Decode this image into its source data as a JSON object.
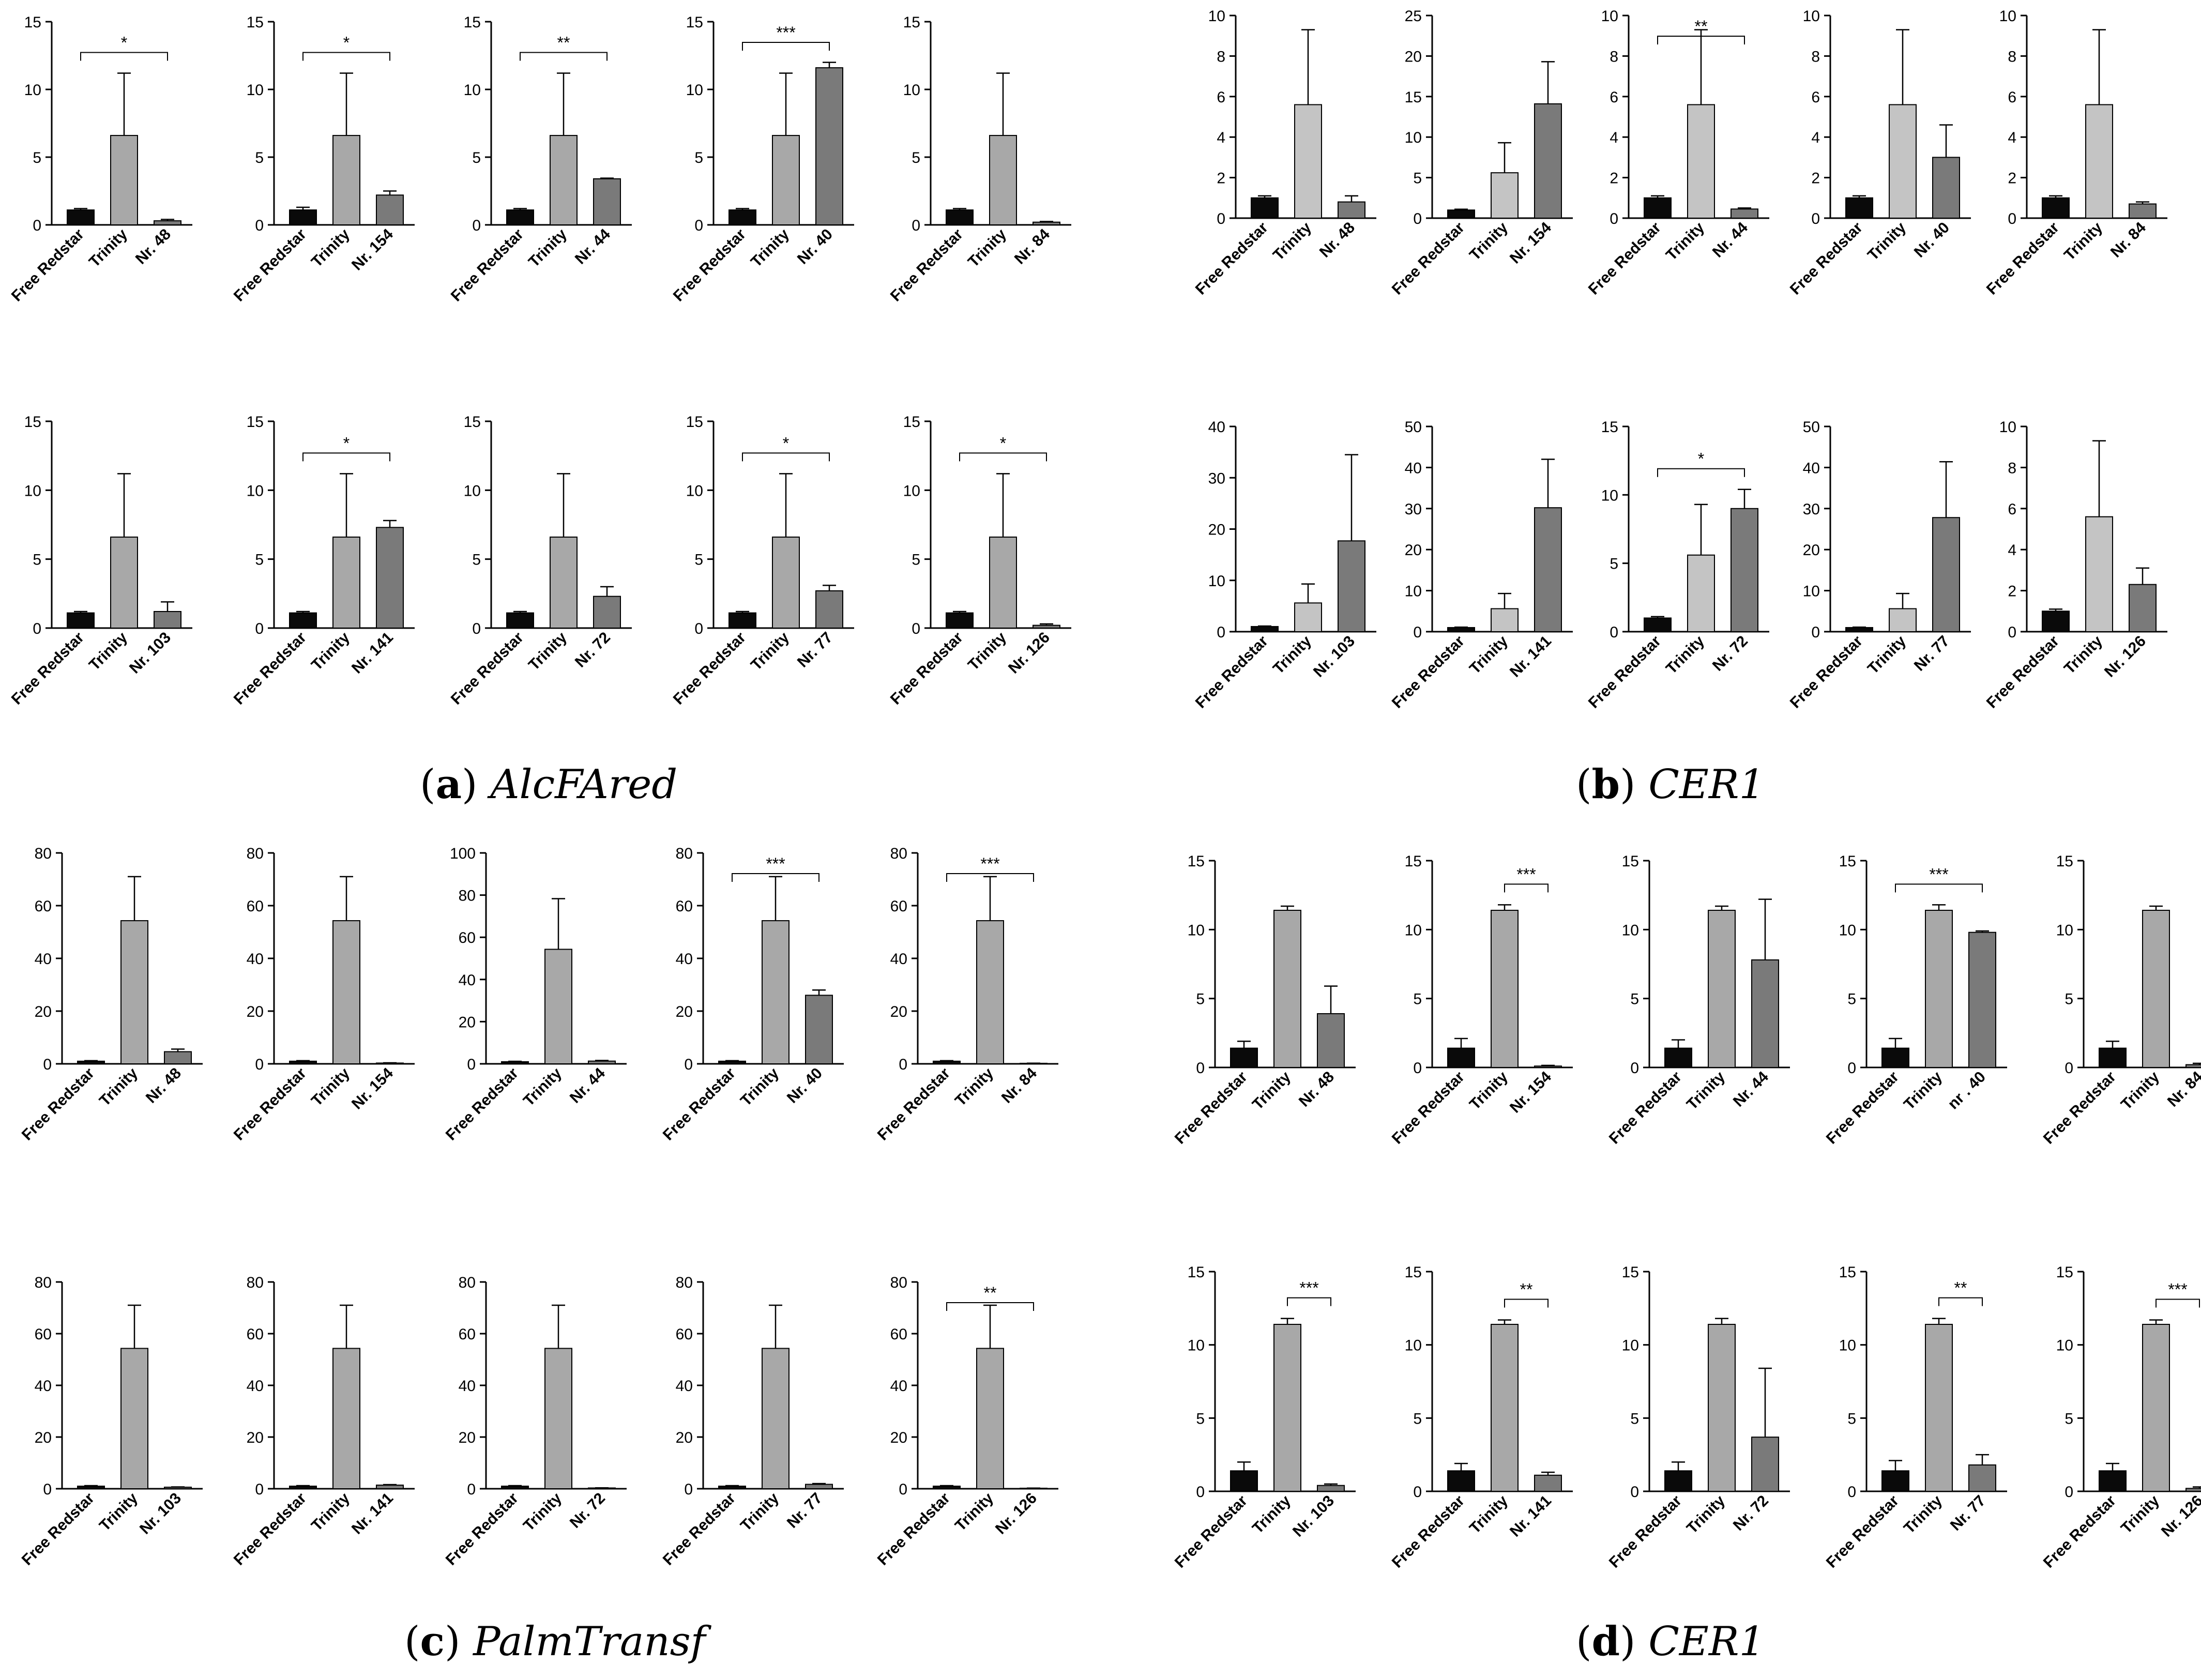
{
  "figure": {
    "captions": [
      {
        "letter": "a",
        "gene": "AlcFAred"
      },
      {
        "letter": "b",
        "gene": "CER1"
      },
      {
        "letter": "c",
        "gene": "PalmTransf"
      },
      {
        "letter": "d",
        "gene": "CER1"
      }
    ]
  },
  "colors": {
    "free_redstar": "#0a0a0a",
    "trinity": "#a8a8a8",
    "trinity_light": "#c4c4c4",
    "line": "#7a7a7a",
    "line_dark": "#3c3c3c",
    "axis": "#000000"
  },
  "chart_data": [
    {
      "panel": "a",
      "type": "bar",
      "categories": [
        "Free Redstar",
        "Trinity",
        "Nr. 48"
      ],
      "values": [
        1.1,
        6.6,
        0.3
      ],
      "errors": [
        0.1,
        4.6,
        0.1
      ],
      "ylim": [
        0,
        15
      ],
      "yticks": [
        0,
        5,
        10,
        15
      ],
      "sig": {
        "from": 0,
        "to": 2,
        "label": "*"
      }
    },
    {
      "panel": "a",
      "type": "bar",
      "categories": [
        "Free Redstar",
        "Trinity",
        "Nr. 154"
      ],
      "values": [
        1.1,
        6.6,
        2.2
      ],
      "errors": [
        0.2,
        4.6,
        0.3
      ],
      "ylim": [
        0,
        15
      ],
      "yticks": [
        0,
        5,
        10,
        15
      ],
      "sig": {
        "from": 0,
        "to": 2,
        "label": "*"
      }
    },
    {
      "panel": "a",
      "type": "bar",
      "categories": [
        "Free Redstar",
        "Trinity",
        "Nr. 44"
      ],
      "values": [
        1.1,
        6.6,
        3.4
      ],
      "errors": [
        0.1,
        4.6,
        0.05
      ],
      "ylim": [
        0,
        15
      ],
      "yticks": [
        0,
        5,
        10,
        15
      ],
      "sig": {
        "from": 0,
        "to": 2,
        "label": "**"
      }
    },
    {
      "panel": "a",
      "type": "bar",
      "categories": [
        "Free Redstar",
        "Trinity",
        "Nr. 40"
      ],
      "values": [
        1.1,
        6.6,
        11.6
      ],
      "errors": [
        0.1,
        4.6,
        0.4
      ],
      "ylim": [
        0,
        15
      ],
      "yticks": [
        0,
        5,
        10,
        15
      ],
      "sig": {
        "from": 0,
        "to": 2,
        "label": "***"
      }
    },
    {
      "panel": "a",
      "type": "bar",
      "categories": [
        "Free Redstar",
        "Trinity",
        "Nr. 84"
      ],
      "values": [
        1.1,
        6.6,
        0.2
      ],
      "errors": [
        0.1,
        4.6,
        0.05
      ],
      "ylim": [
        0,
        15
      ],
      "yticks": [
        0,
        5,
        10,
        15
      ]
    },
    {
      "panel": "a",
      "type": "bar",
      "categories": [
        "Free Redstar",
        "Trinity",
        "Nr. 103"
      ],
      "values": [
        1.1,
        6.6,
        1.2
      ],
      "errors": [
        0.1,
        4.6,
        0.7
      ],
      "ylim": [
        0,
        15
      ],
      "yticks": [
        0,
        5,
        10,
        15
      ]
    },
    {
      "panel": "a",
      "type": "bar",
      "categories": [
        "Free Redstar",
        "Trinity",
        "Nr. 141"
      ],
      "values": [
        1.1,
        6.6,
        7.3
      ],
      "errors": [
        0.1,
        4.6,
        0.5
      ],
      "ylim": [
        0,
        15
      ],
      "yticks": [
        0,
        5,
        10,
        15
      ],
      "sig": {
        "from": 0,
        "to": 2,
        "label": "*"
      }
    },
    {
      "panel": "a",
      "type": "bar",
      "categories": [
        "Free Redstar",
        "Trinity",
        "Nr. 72"
      ],
      "values": [
        1.1,
        6.6,
        2.3
      ],
      "errors": [
        0.1,
        4.6,
        0.7
      ],
      "ylim": [
        0,
        15
      ],
      "yticks": [
        0,
        5,
        10,
        15
      ]
    },
    {
      "panel": "a",
      "type": "bar",
      "categories": [
        "Free Redstar",
        "Trinity",
        "Nr. 77"
      ],
      "values": [
        1.1,
        6.6,
        2.7
      ],
      "errors": [
        0.1,
        4.6,
        0.4
      ],
      "ylim": [
        0,
        15
      ],
      "yticks": [
        0,
        5,
        10,
        15
      ],
      "sig": {
        "from": 0,
        "to": 2,
        "label": "*"
      }
    },
    {
      "panel": "a",
      "type": "bar",
      "categories": [
        "Free Redstar",
        "Trinity",
        "Nr. 126"
      ],
      "values": [
        1.1,
        6.6,
        0.2
      ],
      "errors": [
        0.1,
        4.6,
        0.1
      ],
      "ylim": [
        0,
        15
      ],
      "yticks": [
        0,
        5,
        10,
        15
      ],
      "sig": {
        "from": 0,
        "to": 2,
        "label": "*"
      }
    },
    {
      "panel": "b",
      "type": "bar",
      "categories": [
        "Free Redstar",
        "Trinity",
        "Nr. 48"
      ],
      "values": [
        1.0,
        5.6,
        0.8
      ],
      "errors": [
        0.1,
        3.7,
        0.3
      ],
      "ylim": [
        0,
        10
      ],
      "yticks": [
        0,
        2,
        4,
        6,
        8,
        10
      ]
    },
    {
      "panel": "b",
      "type": "bar",
      "categories": [
        "Free Redstar",
        "Trinity",
        "Nr. 154"
      ],
      "values": [
        1.0,
        5.6,
        14.1
      ],
      "errors": [
        0.1,
        3.7,
        5.2
      ],
      "ylim": [
        0,
        25
      ],
      "yticks": [
        0,
        5,
        10,
        15,
        20,
        25
      ]
    },
    {
      "panel": "b",
      "type": "bar",
      "categories": [
        "Free Redstar",
        "Trinity",
        "Nr. 44"
      ],
      "values": [
        1.0,
        5.6,
        0.45
      ],
      "errors": [
        0.1,
        3.7,
        0.05
      ],
      "ylim": [
        0,
        10
      ],
      "yticks": [
        0,
        2,
        4,
        6,
        8,
        10
      ],
      "sig": {
        "from": 0,
        "to": 2,
        "label": "**"
      }
    },
    {
      "panel": "b",
      "type": "bar",
      "categories": [
        "Free Redstar",
        "Trinity",
        "Nr. 40"
      ],
      "values": [
        1.0,
        5.6,
        3.0
      ],
      "errors": [
        0.1,
        3.7,
        1.6
      ],
      "ylim": [
        0,
        10
      ],
      "yticks": [
        0,
        2,
        4,
        6,
        8,
        10
      ]
    },
    {
      "panel": "b",
      "type": "bar",
      "categories": [
        "Free Redstar",
        "Trinity",
        "Nr. 84"
      ],
      "values": [
        1.0,
        5.6,
        0.7
      ],
      "errors": [
        0.1,
        3.7,
        0.1
      ],
      "ylim": [
        0,
        10
      ],
      "yticks": [
        0,
        2,
        4,
        6,
        8,
        10
      ]
    },
    {
      "panel": "b",
      "type": "bar",
      "categories": [
        "Free Redstar",
        "Trinity",
        "Nr. 103"
      ],
      "values": [
        1.0,
        5.6,
        17.7
      ],
      "errors": [
        0.1,
        3.7,
        16.8
      ],
      "ylim": [
        0,
        40
      ],
      "yticks": [
        0,
        10,
        20,
        30,
        40
      ]
    },
    {
      "panel": "b",
      "type": "bar",
      "categories": [
        "Free Redstar",
        "Trinity",
        "Nr. 141"
      ],
      "values": [
        1.0,
        5.6,
        30.2
      ],
      "errors": [
        0.1,
        3.7,
        11.8
      ],
      "ylim": [
        0,
        50
      ],
      "yticks": [
        0,
        10,
        20,
        30,
        40,
        50
      ]
    },
    {
      "panel": "b",
      "type": "bar",
      "categories": [
        "Free Redstar",
        "Trinity",
        "Nr. 72"
      ],
      "values": [
        1.0,
        5.6,
        9.0
      ],
      "errors": [
        0.1,
        3.7,
        1.4
      ],
      "ylim": [
        0,
        15
      ],
      "yticks": [
        0,
        5,
        10,
        15
      ],
      "sig": {
        "from": 0,
        "to": 2,
        "label": "*"
      }
    },
    {
      "panel": "b",
      "type": "bar",
      "categories": [
        "Free Redstar",
        "Trinity",
        "Nr. 77"
      ],
      "values": [
        1.0,
        5.6,
        27.8
      ],
      "errors": [
        0.1,
        3.7,
        13.6
      ],
      "ylim": [
        0,
        50
      ],
      "yticks": [
        0,
        10,
        20,
        30,
        40,
        50
      ]
    },
    {
      "panel": "b",
      "type": "bar",
      "categories": [
        "Free Redstar",
        "Trinity",
        "Nr. 126"
      ],
      "values": [
        1.0,
        5.6,
        2.3
      ],
      "errors": [
        0.1,
        3.7,
        0.8
      ],
      "ylim": [
        0,
        10
      ],
      "yticks": [
        0,
        2,
        4,
        6,
        8,
        10
      ]
    },
    {
      "panel": "c",
      "type": "bar",
      "categories": [
        "Free Redstar",
        "Trinity",
        "Nr. 48"
      ],
      "values": [
        1.0,
        54.3,
        4.6
      ],
      "errors": [
        0.2,
        16.7,
        1.0
      ],
      "ylim": [
        0,
        80
      ],
      "yticks": [
        0,
        20,
        40,
        60,
        80
      ]
    },
    {
      "panel": "c",
      "type": "bar",
      "categories": [
        "Free Redstar",
        "Trinity",
        "Nr. 154"
      ],
      "values": [
        1.0,
        54.3,
        0.3
      ],
      "errors": [
        0.2,
        16.7,
        0.1
      ],
      "ylim": [
        0,
        80
      ],
      "yticks": [
        0,
        20,
        40,
        60,
        80
      ]
    },
    {
      "panel": "c",
      "type": "bar",
      "categories": [
        "Free Redstar",
        "Trinity",
        "Nr. 44"
      ],
      "values": [
        1.0,
        54.3,
        1.3
      ],
      "errors": [
        0.2,
        24.0,
        0.3
      ],
      "ylim": [
        0,
        100
      ],
      "yticks": [
        0,
        20,
        40,
        60,
        80,
        100
      ]
    },
    {
      "panel": "c",
      "type": "bar",
      "categories": [
        "Free Redstar",
        "Trinity",
        "Nr. 40"
      ],
      "values": [
        1.0,
        54.3,
        26.0
      ],
      "errors": [
        0.2,
        16.7,
        2.0
      ],
      "ylim": [
        0,
        80
      ],
      "yticks": [
        0,
        20,
        40,
        60,
        80
      ],
      "sig": {
        "from": 0,
        "to": 2,
        "label": "***"
      }
    },
    {
      "panel": "c",
      "type": "bar",
      "categories": [
        "Free Redstar",
        "Trinity",
        "Nr. 84"
      ],
      "values": [
        1.0,
        54.3,
        0.2
      ],
      "errors": [
        0.2,
        16.7,
        0.05
      ],
      "ylim": [
        0,
        80
      ],
      "yticks": [
        0,
        20,
        40,
        60,
        80
      ],
      "sig": {
        "from": 0,
        "to": 2,
        "label": "***"
      }
    },
    {
      "panel": "c",
      "type": "bar",
      "categories": [
        "Free Redstar",
        "Trinity",
        "Nr. 103"
      ],
      "values": [
        1.0,
        54.3,
        0.6
      ],
      "errors": [
        0.2,
        16.7,
        0.1
      ],
      "ylim": [
        0,
        80
      ],
      "yticks": [
        0,
        20,
        40,
        60,
        80
      ]
    },
    {
      "panel": "c",
      "type": "bar",
      "categories": [
        "Free Redstar",
        "Trinity",
        "Nr. 141"
      ],
      "values": [
        1.0,
        54.3,
        1.4
      ],
      "errors": [
        0.2,
        16.7,
        0.2
      ],
      "ylim": [
        0,
        80
      ],
      "yticks": [
        0,
        20,
        40,
        60,
        80
      ]
    },
    {
      "panel": "c",
      "type": "bar",
      "categories": [
        "Free Redstar",
        "Trinity",
        "Nr. 72"
      ],
      "values": [
        1.0,
        54.3,
        0.3
      ],
      "errors": [
        0.2,
        16.7,
        0.05
      ],
      "ylim": [
        0,
        80
      ],
      "yticks": [
        0,
        20,
        40,
        60,
        80
      ]
    },
    {
      "panel": "c",
      "type": "bar",
      "categories": [
        "Free Redstar",
        "Trinity",
        "Nr. 77"
      ],
      "values": [
        1.0,
        54.3,
        1.7
      ],
      "errors": [
        0.2,
        16.7,
        0.3
      ],
      "ylim": [
        0,
        80
      ],
      "yticks": [
        0,
        20,
        40,
        60,
        80
      ]
    },
    {
      "panel": "c",
      "type": "bar",
      "categories": [
        "Free Redstar",
        "Trinity",
        "Nr. 126"
      ],
      "values": [
        1.0,
        54.3,
        0.2
      ],
      "errors": [
        0.2,
        16.7,
        0.05
      ],
      "ylim": [
        0,
        80
      ],
      "yticks": [
        0,
        20,
        40,
        60,
        80
      ],
      "sig": {
        "from": 0,
        "to": 2,
        "label": "**"
      }
    },
    {
      "panel": "d",
      "type": "bar",
      "categories": [
        "Free Redstar",
        "Trinity",
        "Nr. 48"
      ],
      "values": [
        1.4,
        11.4,
        3.9
      ],
      "errors": [
        0.5,
        0.3,
        2.0
      ],
      "ylim": [
        0,
        15
      ],
      "yticks": [
        0,
        5,
        10,
        15
      ]
    },
    {
      "panel": "d",
      "type": "bar",
      "categories": [
        "Free Redstar",
        "Trinity",
        "Nr. 154"
      ],
      "values": [
        1.4,
        11.4,
        0.1
      ],
      "errors": [
        0.7,
        0.4,
        0.05
      ],
      "ylim": [
        0,
        15
      ],
      "yticks": [
        0,
        5,
        10,
        15
      ],
      "sig": {
        "from": 1,
        "to": 2,
        "label": "***"
      }
    },
    {
      "panel": "d",
      "type": "bar",
      "categories": [
        "Free Redstar",
        "Trinity",
        "Nr. 44"
      ],
      "values": [
        1.4,
        11.4,
        7.8
      ],
      "errors": [
        0.6,
        0.3,
        4.4
      ],
      "ylim": [
        0,
        15
      ],
      "yticks": [
        0,
        5,
        10,
        15
      ]
    },
    {
      "panel": "d",
      "type": "bar",
      "categories": [
        "Free Redstar",
        "Trinity",
        "nr . 40"
      ],
      "values": [
        1.4,
        11.4,
        9.8
      ],
      "errors": [
        0.7,
        0.4,
        0.1
      ],
      "ylim": [
        0,
        15
      ],
      "yticks": [
        0,
        5,
        10,
        15
      ],
      "sig": {
        "from": 0,
        "to": 2,
        "label": "***"
      }
    },
    {
      "panel": "d",
      "type": "bar",
      "categories": [
        "Free Redstar",
        "Trinity",
        "Nr. 84"
      ],
      "values": [
        1.4,
        11.4,
        0.2
      ],
      "errors": [
        0.5,
        0.3,
        0.1
      ],
      "ylim": [
        0,
        15
      ],
      "yticks": [
        0,
        5,
        10,
        15
      ]
    },
    {
      "panel": "d",
      "type": "bar",
      "categories": [
        "Free Redstar",
        "Trinity",
        "Nr. 103"
      ],
      "values": [
        1.4,
        11.4,
        0.4
      ],
      "errors": [
        0.6,
        0.4,
        0.1
      ],
      "ylim": [
        0,
        15
      ],
      "yticks": [
        0,
        5,
        10,
        15
      ],
      "sig": {
        "from": 1,
        "to": 2,
        "label": "***"
      }
    },
    {
      "panel": "d",
      "type": "bar",
      "categories": [
        "Free Redstar",
        "Trinity",
        "Nr. 141"
      ],
      "values": [
        1.4,
        11.4,
        1.1
      ],
      "errors": [
        0.5,
        0.3,
        0.2
      ],
      "ylim": [
        0,
        15
      ],
      "yticks": [
        0,
        5,
        10,
        15
      ],
      "sig": {
        "from": 1,
        "to": 2,
        "label": "**"
      }
    },
    {
      "panel": "d",
      "type": "bar",
      "categories": [
        "Free Redstar",
        "Trinity",
        "Nr. 72"
      ],
      "values": [
        1.4,
        11.4,
        3.7
      ],
      "errors": [
        0.6,
        0.4,
        4.7
      ],
      "ylim": [
        0,
        15
      ],
      "yticks": [
        0,
        5,
        10,
        15
      ]
    },
    {
      "panel": "d",
      "type": "bar",
      "categories": [
        "Free Redstar",
        "Trinity",
        "Nr. 77"
      ],
      "values": [
        1.4,
        11.4,
        1.8
      ],
      "errors": [
        0.7,
        0.4,
        0.7
      ],
      "ylim": [
        0,
        15
      ],
      "yticks": [
        0,
        5,
        10,
        15
      ],
      "sig": {
        "from": 1,
        "to": 2,
        "label": "**"
      }
    },
    {
      "panel": "d",
      "type": "bar",
      "categories": [
        "Free Redstar",
        "Trinity",
        "Nr. 126"
      ],
      "values": [
        1.4,
        11.4,
        0.2
      ],
      "errors": [
        0.5,
        0.3,
        0.1
      ],
      "ylim": [
        0,
        15
      ],
      "yticks": [
        0,
        5,
        10,
        15
      ],
      "sig": {
        "from": 1,
        "to": 2,
        "label": "***"
      }
    }
  ]
}
